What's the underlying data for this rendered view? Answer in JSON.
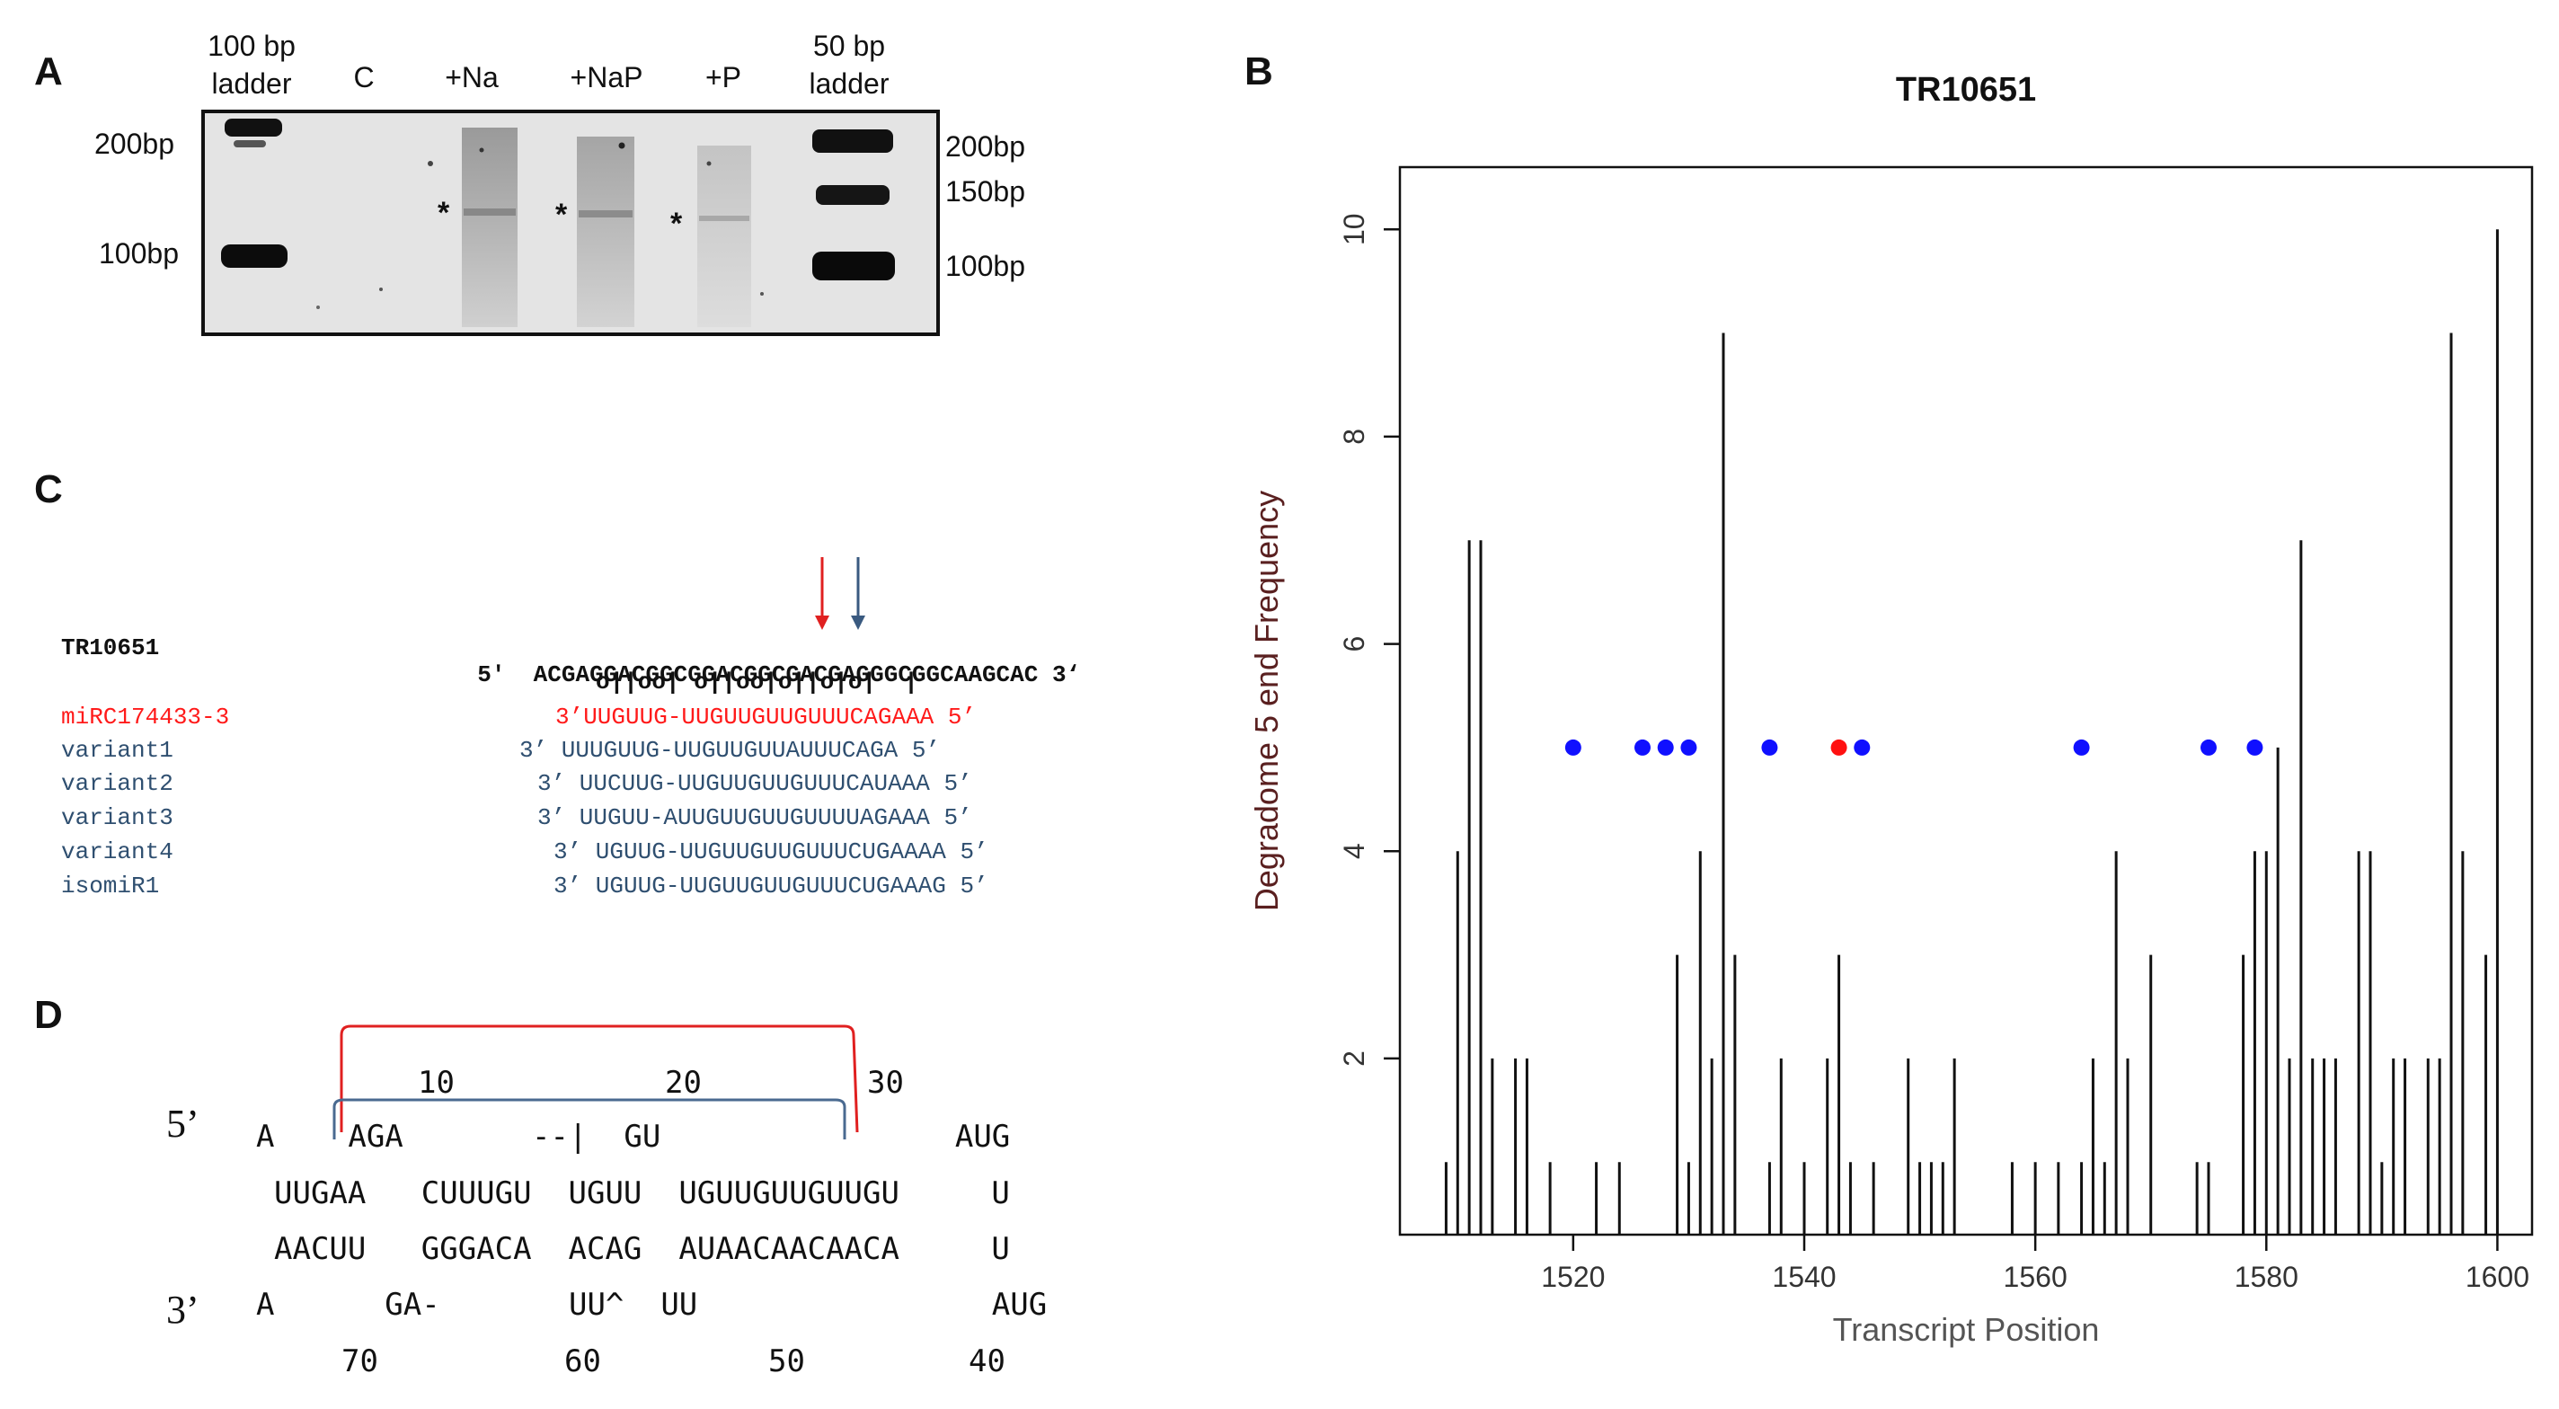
{
  "panels": {
    "a": "A",
    "b": "B",
    "c": "C",
    "d": "D"
  },
  "gel": {
    "lanes": [
      "100 bp\nladder",
      "C",
      "+Na",
      "+NaP",
      "+P",
      "50 bp\nladder"
    ],
    "left_markers": [
      "200bp",
      "100bp"
    ],
    "right_markers": [
      "200bp",
      "150bp",
      "100bp"
    ],
    "asterisk": "*"
  },
  "alignment": {
    "target": {
      "name": "TR10651",
      "prefix": "5′",
      "seq": "ACGAGGACGGCGGACGGCGACGAGGGCGGCAAGCAC",
      "suffix": "3‘"
    },
    "pairing": "o||oo| o||oo|o||o|o|  |",
    "mirna": {
      "name": "miRC174433-3",
      "seq": "3’UUGUUG-UUGUUGUUGUUUCAGAAA 5’"
    },
    "variants": [
      {
        "name": "variant1",
        "seq": "3’ UUUGUUG-UUGUUGUUAUUUCAGA 5’"
      },
      {
        "name": "variant2",
        "seq": "3’ UUCUUG-UUGUUGUUGUUUCAUAAA 5’"
      },
      {
        "name": "variant3",
        "seq": "3’ UUGUU-AUUGUUGUUGUUUUAGAAA 5’"
      },
      {
        "name": "variant4",
        "seq": "3’ UGUUG-UUGUUGUUGUUUCUGAAAA 5’"
      },
      {
        "name": "isomiR1",
        "seq": "3’ UGUUG-UUGUUGUUGUUUCUGAAAG 5’"
      }
    ],
    "colors": {
      "mirna": "#ff1a1a",
      "variant": "#2f4f70",
      "red_arrow": "#e02020",
      "blue_arrow": "#3a5a80"
    }
  },
  "hairpin": {
    "prime5": "5’",
    "prime3": "3’",
    "top_numbers": [
      "10",
      "20",
      "30"
    ],
    "bottom_numbers": [
      "70",
      "60",
      "50",
      "40"
    ],
    "top_loop_row": "A    AGA       --|  GU                AUG",
    "top_stem_row": "UUGAA   CUUUGU  UGUU  UGUUGUUGUUGU     U",
    "bottom_stem_row": "AACUU   GGGACA  ACAG  AUAACAACAACA     U",
    "bottom_loop_row": "A      GA-       UU^  UU                AUG",
    "bracket_colors": {
      "red": "#e02020",
      "blue": "#4a6a90"
    }
  },
  "chart_data": {
    "type": "bar",
    "title": "TR10651",
    "xlabel": "Transcript Position",
    "ylabel": "Degradome 5 end Frequency",
    "xlim": [
      1505,
      1603
    ],
    "ylim": [
      0.3,
      10.6
    ],
    "xticks": [
      1520,
      1540,
      1560,
      1580,
      1600
    ],
    "yticks": [
      2,
      4,
      6,
      8,
      10
    ],
    "x": [
      1509,
      1510,
      1511,
      1512,
      1513,
      1515,
      1516,
      1518,
      1522,
      1524,
      1529,
      1530,
      1531,
      1532,
      1533,
      1534,
      1537,
      1538,
      1540,
      1542,
      1543,
      1544,
      1546,
      1549,
      1550,
      1551,
      1552,
      1553,
      1558,
      1560,
      1562,
      1564,
      1565,
      1566,
      1567,
      1568,
      1570,
      1574,
      1575,
      1578,
      1579,
      1580,
      1581,
      1582,
      1583,
      1584,
      1585,
      1586,
      1588,
      1589,
      1590,
      1591,
      1592,
      1594,
      1595,
      1596,
      1597,
      1599,
      1600
    ],
    "values": [
      1,
      4,
      7,
      7,
      2,
      2,
      2,
      1,
      1,
      1,
      3,
      1,
      4,
      2,
      9,
      3,
      1,
      2,
      1,
      2,
      3,
      1,
      1,
      2,
      1,
      1,
      1,
      2,
      1,
      1,
      1,
      1,
      2,
      1,
      4,
      2,
      3,
      1,
      1,
      3,
      4,
      4,
      5,
      2,
      7,
      2,
      2,
      2,
      4,
      4,
      1,
      2,
      2,
      2,
      2,
      9,
      4,
      3,
      10
    ],
    "markers": [
      {
        "x": 1520,
        "y": 5,
        "color": "#1010ff"
      },
      {
        "x": 1526,
        "y": 5,
        "color": "#1010ff"
      },
      {
        "x": 1528,
        "y": 5,
        "color": "#1010ff"
      },
      {
        "x": 1530,
        "y": 5,
        "color": "#1010ff"
      },
      {
        "x": 1537,
        "y": 5,
        "color": "#1010ff"
      },
      {
        "x": 1543,
        "y": 5,
        "color": "#ff1010"
      },
      {
        "x": 1545,
        "y": 5,
        "color": "#1010ff"
      },
      {
        "x": 1564,
        "y": 5,
        "color": "#1010ff"
      },
      {
        "x": 1575,
        "y": 5,
        "color": "#1010ff"
      },
      {
        "x": 1579,
        "y": 5,
        "color": "#1010ff"
      }
    ],
    "ylabel_color": "#5a2020"
  }
}
